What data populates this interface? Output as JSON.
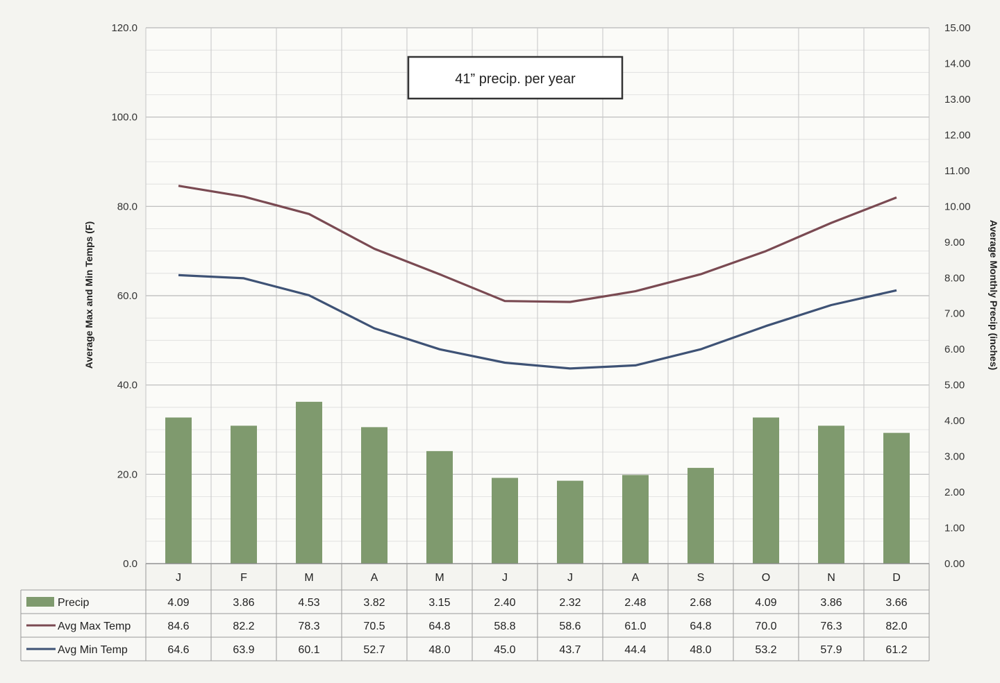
{
  "chart_data": {
    "type": "bar",
    "annotation": "41” precip. per year",
    "ylabel_left": "Average Max and Min Temps (F)",
    "ylabel_right": "Average Monthly Precip (inches)",
    "y_left_range": [
      0,
      120
    ],
    "y_left_ticks": [
      "0.0",
      "20.0",
      "40.0",
      "60.0",
      "80.0",
      "100.0",
      "120.0"
    ],
    "y_right_range": [
      0,
      15
    ],
    "y_right_ticks": [
      "0.00",
      "1.00",
      "2.00",
      "3.00",
      "4.00",
      "5.00",
      "6.00",
      "7.00",
      "8.00",
      "9.00",
      "10.00",
      "11.00",
      "12.00",
      "13.00",
      "14.00",
      "15.00"
    ],
    "grid": true,
    "categories": [
      "J",
      "F",
      "M",
      "A",
      "M",
      "J",
      "J",
      "A",
      "S",
      "O",
      "N",
      "D"
    ],
    "series": [
      {
        "name": "Precip",
        "kind": "bar",
        "axis": "right",
        "color": "#7f9a6e",
        "values": [
          4.09,
          3.86,
          4.53,
          3.82,
          3.15,
          2.4,
          2.32,
          2.48,
          2.68,
          4.09,
          3.86,
          3.66
        ],
        "labels": [
          "4.09",
          "3.86",
          "4.53",
          "3.82",
          "3.15",
          "2.40",
          "2.32",
          "2.48",
          "2.68",
          "4.09",
          "3.86",
          "3.66"
        ]
      },
      {
        "name": "Avg Max Temp",
        "kind": "line",
        "axis": "left",
        "color": "#7a4a52",
        "values": [
          84.6,
          82.2,
          78.3,
          70.5,
          64.8,
          58.8,
          58.6,
          61.0,
          64.8,
          70.0,
          76.3,
          82.0
        ],
        "labels": [
          "84.6",
          "82.2",
          "78.3",
          "70.5",
          "64.8",
          "58.8",
          "58.6",
          "61.0",
          "64.8",
          "70.0",
          "76.3",
          "82.0"
        ]
      },
      {
        "name": "Avg Min Temp",
        "kind": "line",
        "axis": "left",
        "color": "#3e5275",
        "values": [
          64.6,
          63.9,
          60.1,
          52.7,
          48.0,
          45.0,
          43.7,
          44.4,
          48.0,
          53.2,
          57.9,
          61.2
        ],
        "labels": [
          "64.6",
          "63.9",
          "60.1",
          "52.7",
          "48.0",
          "45.0",
          "43.7",
          "44.4",
          "48.0",
          "53.2",
          "57.9",
          "61.2"
        ]
      }
    ]
  }
}
